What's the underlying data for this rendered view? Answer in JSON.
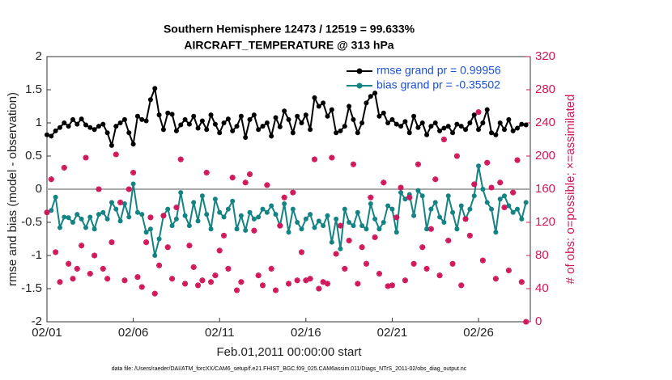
{
  "chart_data": {
    "type": "line",
    "title": "Southern Hemisphere 12473 / 12519 = 99.633%",
    "subtitle": "AIRCRAFT_TEMPERATURE @ 313 hPa",
    "xlabel": "Feb.01,2011 00:00:00 start",
    "ylabel": "rmse and bias (model - observation)",
    "y2label": "# of obs: o=possible; ×=assimilated",
    "footnote": "data file: /Users/raeder/DAI/ATM_forcXX/CAM6_setup/f.e21.FHIST_BGC.f09_025.CAM6assim.011/Diags_NTrS_2011-02/obs_diag_output.nc",
    "legend": "northeast",
    "hline": 0,
    "xlim": [
      0,
      28
    ],
    "xticks": [
      {
        "value": 0,
        "label": "02/01"
      },
      {
        "value": 5,
        "label": "02/06"
      },
      {
        "value": 10,
        "label": "02/11"
      },
      {
        "value": 15,
        "label": "02/16"
      },
      {
        "value": 20,
        "label": "02/21"
      },
      {
        "value": 25,
        "label": "02/26"
      }
    ],
    "ylim": [
      -2,
      2
    ],
    "yticks": [
      -2,
      -1.5,
      -1,
      -0.5,
      0,
      0.5,
      1,
      1.5,
      2
    ],
    "y2lim": [
      0,
      320
    ],
    "y2ticks": [
      0,
      40,
      80,
      120,
      160,
      200,
      240,
      280,
      320
    ],
    "x": [
      0,
      0.25,
      0.5,
      0.75,
      1,
      1.25,
      1.5,
      1.75,
      2,
      2.25,
      2.5,
      2.75,
      3,
      3.25,
      3.5,
      3.75,
      4,
      4.25,
      4.5,
      4.75,
      5,
      5.25,
      5.5,
      5.75,
      6,
      6.25,
      6.5,
      6.75,
      7,
      7.25,
      7.5,
      7.75,
      8,
      8.25,
      8.5,
      8.75,
      9,
      9.25,
      9.5,
      9.75,
      10,
      10.25,
      10.5,
      10.75,
      11,
      11.25,
      11.5,
      11.75,
      12,
      12.25,
      12.5,
      12.75,
      13,
      13.25,
      13.5,
      13.75,
      14,
      14.25,
      14.5,
      14.75,
      15,
      15.25,
      15.5,
      15.75,
      16,
      16.25,
      16.5,
      16.75,
      17,
      17.25,
      17.5,
      17.75,
      18,
      18.25,
      18.5,
      18.75,
      19,
      19.25,
      19.5,
      19.75,
      20,
      20.25,
      20.5,
      20.75,
      21,
      21.25,
      21.5,
      21.75,
      22,
      22.25,
      22.5,
      22.75,
      23,
      23.25,
      23.5,
      23.75,
      24,
      24.25,
      24.5,
      24.75,
      25,
      25.25,
      25.5,
      25.75,
      26,
      26.25,
      26.5,
      26.75,
      27,
      27.25,
      27.5,
      27.75
    ],
    "series": [
      {
        "name": "rmse grand pr = 0.99956",
        "color": "#000000",
        "axis": "y",
        "values": [
          0.82,
          0.8,
          0.88,
          0.93,
          1.0,
          0.95,
          1.05,
          0.98,
          1.06,
          0.97,
          0.93,
          0.9,
          0.95,
          0.98,
          0.85,
          0.66,
          0.95,
          1.0,
          1.05,
          0.85,
          0.68,
          1.1,
          1.05,
          1.03,
          1.35,
          1.52,
          1.12,
          0.9,
          1.15,
          1.13,
          0.88,
          0.97,
          1.05,
          0.98,
          1.1,
          0.92,
          1.03,
          0.9,
          1.12,
          0.98,
          0.85,
          1.0,
          1.06,
          0.88,
          0.95,
          1.1,
          0.78,
          1.05,
          1.12,
          0.9,
          0.95,
          1.0,
          0.8,
          1.08,
          0.94,
          1.18,
          1.05,
          0.85,
          1.1,
          1.0,
          1.12,
          0.9,
          1.38,
          1.25,
          1.3,
          1.1,
          1.2,
          0.85,
          0.88,
          0.95,
          1.25,
          1.05,
          0.85,
          1.0,
          1.3,
          1.4,
          1.45,
          1.1,
          1.15,
          1.0,
          1.05,
          0.98,
          0.95,
          1.02,
          0.85,
          1.1,
          0.93,
          1.0,
          0.82,
          0.95,
          1.0,
          0.88,
          0.92,
          0.95,
          0.85,
          0.98,
          0.95,
          0.9,
          1.0,
          1.12,
          0.9,
          1.0,
          1.2,
          0.85,
          0.82,
          1.0,
          0.9,
          1.05,
          0.88,
          0.92,
          0.98,
          0.97
        ]
      },
      {
        "name": "bias grand pr = -0.35502",
        "color": "#138383",
        "axis": "y",
        "values": [
          -0.35,
          -0.32,
          -0.12,
          -0.58,
          -0.42,
          -0.43,
          -0.5,
          -0.38,
          -0.45,
          -0.58,
          -0.42,
          -0.6,
          -0.38,
          -0.35,
          -0.45,
          -0.2,
          -0.3,
          -0.48,
          -0.22,
          -0.42,
          0.08,
          -0.35,
          -0.38,
          -0.65,
          -0.6,
          -1.0,
          -0.75,
          -0.4,
          -0.3,
          -0.55,
          -0.45,
          -0.05,
          -0.4,
          -0.55,
          -0.2,
          -0.48,
          -0.1,
          -0.38,
          -0.6,
          -0.15,
          -0.35,
          -0.42,
          -0.3,
          -0.18,
          -0.6,
          -0.4,
          -0.62,
          -0.35,
          -0.45,
          -0.42,
          -0.3,
          -0.35,
          -0.25,
          -0.38,
          -0.55,
          -0.22,
          -0.65,
          -0.3,
          -0.5,
          -0.6,
          -0.45,
          -0.38,
          -0.58,
          -0.48,
          -0.55,
          -0.4,
          -0.8,
          -0.45,
          -0.9,
          -0.3,
          -0.5,
          -0.55,
          -0.35,
          -0.55,
          -0.6,
          -0.22,
          -0.45,
          -0.6,
          -0.5,
          -0.25,
          -0.3,
          -0.65,
          -0.05,
          -0.15,
          -0.08,
          -0.4,
          -0.02,
          -0.1,
          -0.6,
          -0.3,
          -0.2,
          -0.42,
          -0.5,
          -0.1,
          -0.35,
          -0.6,
          -0.25,
          -0.45,
          -0.3,
          -0.1,
          0.35,
          0.0,
          -0.2,
          -0.3,
          -0.65,
          -0.15,
          -0.1,
          -0.25,
          -0.35,
          -0.3,
          -0.45,
          -0.2
        ]
      },
      {
        "color": "#d1155a",
        "axis": "y2",
        "marker": "o*",
        "values": [
          132,
          172,
          84,
          48,
          186,
          70,
          52,
          64,
          92,
          198,
          58,
          80,
          160,
          64,
          52,
          96,
          202,
          144,
          50,
          160,
          180,
          54,
          42,
          96,
          126,
          34,
          68,
          128,
          90,
          52,
          138,
          196,
          46,
          92,
          66,
          44,
          50,
          180,
          48,
          56,
          86,
          104,
          64,
          174,
          38,
          48,
          168,
          178,
          110,
          56,
          44,
          165,
          64,
          38,
          116,
          150,
          46,
          156,
          50,
          84,
          50,
          52,
          196,
          40,
          48,
          46,
          198,
          82,
          116,
          64,
          98,
          190,
          46,
          90,
          70,
          150,
          102,
          58,
          168,
          43,
          44,
          126,
          162,
          50,
          150,
          70,
          190,
          90,
          64,
          112,
          172,
          56,
          220,
          98,
          70,
          200,
          44,
          124,
          104,
          166,
          253,
          74,
          192,
          162,
          52,
          168,
          138,
          62,
          156,
          195,
          48,
          0
        ]
      }
    ]
  }
}
